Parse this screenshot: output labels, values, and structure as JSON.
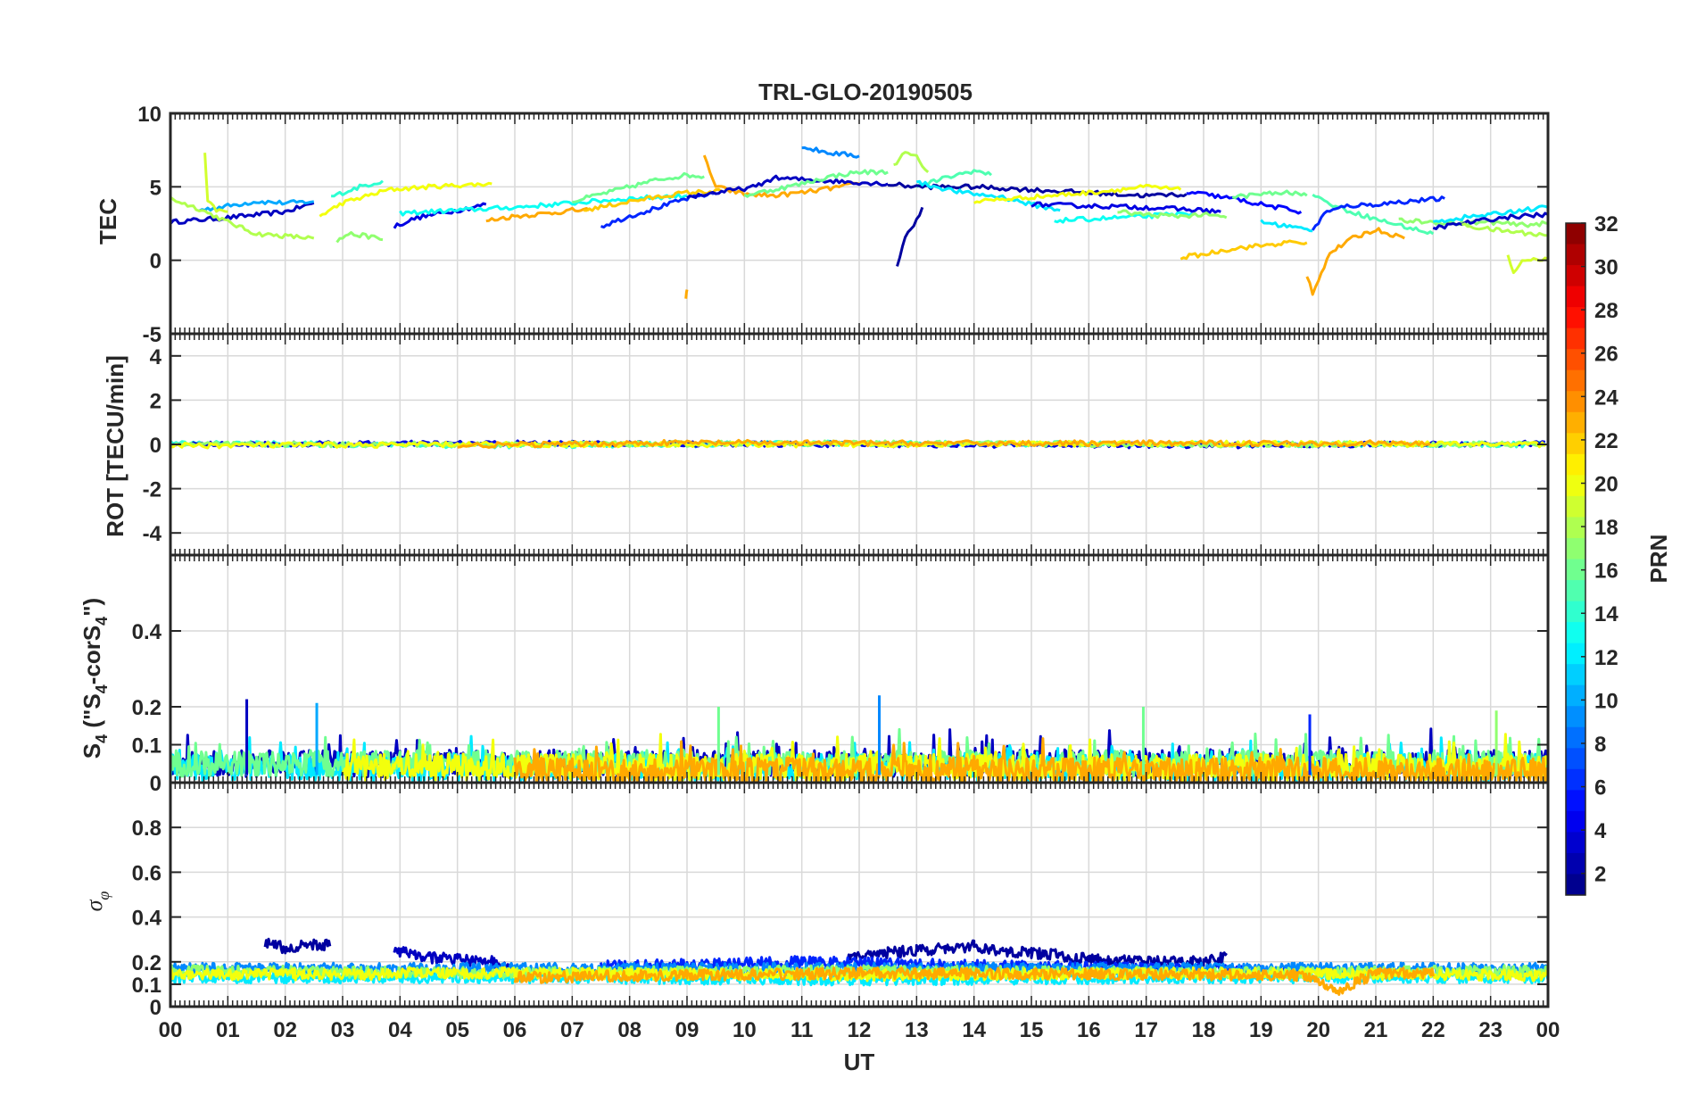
{
  "chart_data": [
    {
      "type": "line",
      "panel": "TEC",
      "title": "TRL-GLO-20190505",
      "ylabel": "TEC",
      "ylim": [
        -5,
        10
      ],
      "yticks": [
        "10",
        "5",
        "0",
        "-5"
      ],
      "ytick_values": [
        10,
        5,
        0,
        -5
      ],
      "grid": true,
      "series": [
        {
          "prn": 3,
          "x": [
            0,
            1,
            2,
            2.5
          ],
          "y": [
            2.6,
            2.9,
            3.3,
            3.9
          ]
        },
        {
          "prn": 10,
          "x": [
            0.5,
            1,
            1.5,
            2,
            2.5
          ],
          "y": [
            3.4,
            3.7,
            4.0,
            3.9,
            4.0
          ]
        },
        {
          "prn": 18,
          "x": [
            0,
            0.5,
            1,
            1.5,
            2.5
          ],
          "y": [
            4.2,
            3.5,
            2.6,
            1.8,
            1.5
          ]
        },
        {
          "prn": 19,
          "x": [
            0.6,
            0.65,
            0.8,
            1.0
          ],
          "y": [
            7.2,
            4.0,
            3.4,
            3.3
          ]
        },
        {
          "prn": 14,
          "x": [
            2.8,
            3.0,
            3.3,
            3.7
          ],
          "y": [
            4.3,
            4.6,
            5.0,
            5.4
          ]
        },
        {
          "prn": 17,
          "x": [
            2.9,
            3.1,
            3.5,
            3.7
          ],
          "y": [
            1.3,
            1.8,
            1.6,
            1.4
          ]
        },
        {
          "prn": 20,
          "x": [
            2.6,
            3,
            3.8,
            4.5,
            5,
            5.6
          ],
          "y": [
            3.0,
            3.9,
            4.8,
            5.0,
            5.1,
            5.2
          ]
        },
        {
          "prn": 4,
          "x": [
            3.9,
            4.3,
            4.7,
            5.0,
            5.5
          ],
          "y": [
            2.3,
            2.9,
            3.2,
            3.4,
            3.8
          ]
        },
        {
          "prn": 23,
          "x": [
            5.5,
            6,
            6.6,
            7,
            7.3
          ],
          "y": [
            2.7,
            3.0,
            3.2,
            3.4,
            3.4
          ]
        },
        {
          "prn": 13,
          "x": [
            4.0,
            5,
            6,
            7,
            8,
            9
          ],
          "y": [
            3.2,
            3.4,
            3.6,
            3.9,
            4.2,
            4.4
          ]
        },
        {
          "prn": 16,
          "x": [
            7.0,
            7.5,
            8,
            8.5,
            9,
            9.3
          ],
          "y": [
            4.0,
            4.5,
            5.0,
            5.5,
            5.8,
            5.7
          ]
        },
        {
          "prn": 6,
          "x": [
            7.5,
            8,
            8.5,
            9,
            9.5
          ],
          "y": [
            2.3,
            3.0,
            3.6,
            4.2,
            4.6
          ]
        },
        {
          "prn": 22,
          "x": [
            7.2,
            8,
            8.8,
            9,
            9.6
          ],
          "y": [
            3.4,
            4.0,
            4.5,
            4.6,
            4.7
          ]
        },
        {
          "prn": 23,
          "x": [
            9.3,
            9.5,
            10,
            10.5,
            11,
            11.5,
            12
          ],
          "y": [
            7.1,
            5.0,
            4.5,
            4.4,
            4.6,
            4.9,
            5.2
          ]
        },
        {
          "prn": 23,
          "x": [
            8.98,
            9.0
          ],
          "y": [
            -2.5,
            -2.0
          ]
        },
        {
          "prn": 3,
          "x": [
            9.0,
            9.5,
            10.2,
            10.5,
            11,
            11.5,
            12.5
          ],
          "y": [
            4.3,
            4.6,
            5.0,
            5.6,
            5.5,
            5.4,
            5.2
          ]
        },
        {
          "prn": 9,
          "x": [
            11.0,
            11.5,
            12.0
          ],
          "y": [
            7.7,
            7.3,
            7.1
          ]
        },
        {
          "prn": 16,
          "x": [
            10.0,
            10.5,
            11,
            11.5,
            12,
            12.5
          ],
          "y": [
            4.4,
            4.8,
            5.2,
            5.7,
            6.0,
            6.0
          ]
        },
        {
          "prn": 18,
          "x": [
            12.6,
            12.8,
            13.0,
            13.2
          ],
          "y": [
            6.5,
            7.3,
            7.0,
            6.0
          ]
        },
        {
          "prn": 2,
          "x": [
            12.66,
            12.8,
            13.0,
            13.1
          ],
          "y": [
            -0.4,
            1.5,
            2.8,
            3.6
          ]
        },
        {
          "prn": 15,
          "x": [
            13.0,
            13.5,
            14.0,
            14.3
          ],
          "y": [
            5.0,
            5.6,
            6.1,
            5.8
          ]
        },
        {
          "prn": 2,
          "x": [
            12.5,
            13,
            14,
            15,
            16,
            17,
            17.7
          ],
          "y": [
            5.2,
            5.0,
            5.0,
            4.8,
            4.6,
            4.4,
            4.5
          ]
        },
        {
          "prn": 12,
          "x": [
            13.0,
            13.8,
            14.5,
            15.0,
            15.5
          ],
          "y": [
            5.3,
            4.6,
            4.3,
            3.8,
            3.4
          ]
        },
        {
          "prn": 20,
          "x": [
            14.0,
            15,
            16,
            17,
            17.6
          ],
          "y": [
            4.0,
            4.3,
            4.6,
            5.0,
            4.8
          ]
        },
        {
          "prn": 13,
          "x": [
            15.4,
            16,
            17,
            17.8
          ],
          "y": [
            2.7,
            2.8,
            3.0,
            3.2
          ]
        },
        {
          "prn": 4,
          "x": [
            15.0,
            16,
            17,
            18,
            18.3
          ],
          "y": [
            3.8,
            3.7,
            3.6,
            3.4,
            3.3
          ]
        },
        {
          "prn": 17,
          "x": [
            16.5,
            17,
            17.5,
            18,
            18.4
          ],
          "y": [
            3.3,
            3.1,
            3.0,
            3.1,
            2.9
          ]
        },
        {
          "prn": 5,
          "x": [
            17.7,
            18,
            18.5,
            19,
            19.7
          ],
          "y": [
            4.6,
            4.5,
            4.2,
            3.8,
            3.3
          ]
        },
        {
          "prn": 16,
          "x": [
            18.5,
            19,
            19.5,
            19.8
          ],
          "y": [
            4.3,
            4.5,
            4.6,
            4.4
          ]
        },
        {
          "prn": 22,
          "x": [
            17.6,
            18,
            18.5,
            19,
            19.5,
            19.8
          ],
          "y": [
            0.2,
            0.4,
            0.8,
            1.0,
            1.2,
            1.2
          ]
        },
        {
          "prn": 12,
          "x": [
            19.0,
            19.5,
            19.9
          ],
          "y": [
            2.6,
            2.3,
            2.0
          ]
        },
        {
          "prn": 23,
          "x": [
            19.8,
            19.9,
            20.2,
            20.6,
            21,
            21.5
          ],
          "y": [
            -1.0,
            -2.2,
            0.5,
            1.5,
            2.1,
            1.5
          ]
        },
        {
          "prn": 15,
          "x": [
            19.9,
            20.1,
            20.5,
            21,
            21.5,
            22
          ],
          "y": [
            4.6,
            4.0,
            3.4,
            2.8,
            2.3,
            1.8
          ]
        },
        {
          "prn": 6,
          "x": [
            19.9,
            20.1,
            20.5,
            21,
            21.5,
            22.2
          ],
          "y": [
            2.0,
            3.2,
            3.7,
            3.8,
            4.0,
            4.2
          ]
        },
        {
          "prn": 17,
          "x": [
            21.4,
            22,
            22.5,
            23,
            23.5,
            24
          ],
          "y": [
            2.7,
            2.6,
            2.5,
            2.6,
            2.4,
            2.5
          ]
        },
        {
          "prn": 12,
          "x": [
            22.0,
            22.5,
            23,
            23.5,
            24
          ],
          "y": [
            2.6,
            2.9,
            3.1,
            3.4,
            3.6
          ]
        },
        {
          "prn": 3,
          "x": [
            22.0,
            22.5,
            23,
            23.5,
            24
          ],
          "y": [
            2.2,
            2.5,
            2.8,
            3.0,
            3.1
          ]
        },
        {
          "prn": 18,
          "x": [
            22.5,
            23,
            23.5,
            24
          ],
          "y": [
            2.4,
            2.1,
            1.9,
            1.7
          ]
        },
        {
          "prn": 19,
          "x": [
            23.3,
            23.4,
            23.6,
            24
          ],
          "y": [
            0.3,
            -0.8,
            0.1,
            0.1
          ]
        }
      ]
    },
    {
      "type": "line",
      "panel": "ROT",
      "ylabel": "ROT [TECU/min]",
      "ylim": [
        -5,
        5
      ],
      "yticks": [
        "4",
        "2",
        "0",
        "-2",
        "-4"
      ],
      "ytick_values": [
        4,
        2,
        0,
        -2,
        -4
      ],
      "grid": true,
      "series": [
        {
          "prn": 14,
          "x": [
            0,
            6,
            12,
            18,
            24
          ],
          "y": [
            0.05,
            -0.05,
            0.05,
            0,
            0
          ]
        },
        {
          "prn": 4,
          "x": [
            0,
            6,
            12,
            18,
            24
          ],
          "y": [
            0,
            0.05,
            0,
            -0.05,
            0.05
          ]
        },
        {
          "prn": 17,
          "x": [
            0,
            6,
            12,
            18,
            24
          ],
          "y": [
            0,
            0,
            0.05,
            0,
            0
          ]
        },
        {
          "prn": 20,
          "x": [
            0,
            6,
            12,
            18,
            24
          ],
          "y": [
            -0.05,
            0,
            0,
            0.05,
            0
          ]
        },
        {
          "prn": 23,
          "x": [
            5,
            9,
            12,
            18,
            22
          ],
          "y": [
            -0.05,
            0.08,
            0.05,
            0.05,
            0.05
          ]
        }
      ]
    },
    {
      "type": "line",
      "panel": "S4",
      "ylabel": "S4 (\"S4-corS4\")",
      "ylim": [
        0,
        0.6
      ],
      "yticks": [
        "0.4",
        "0.2",
        "0.1",
        "0"
      ],
      "ytick_values": [
        0.4,
        0.2,
        0.1,
        0
      ],
      "grid": true,
      "spikes": [
        {
          "prn": 3,
          "x": 1.33,
          "y": 0.22
        },
        {
          "prn": 10,
          "x": 2.55,
          "y": 0.21
        },
        {
          "prn": 9,
          "x": 12.35,
          "y": 0.23
        },
        {
          "prn": 16,
          "x": 9.55,
          "y": 0.2
        },
        {
          "prn": 16,
          "x": 16.95,
          "y": 0.2
        },
        {
          "prn": 6,
          "x": 19.85,
          "y": 0.18
        },
        {
          "prn": 17,
          "x": 23.1,
          "y": 0.19
        }
      ],
      "series": [
        {
          "prn": 3,
          "x": [
            0,
            24
          ],
          "y": [
            0.05,
            0.05
          ]
        },
        {
          "prn": 12,
          "x": [
            0,
            24
          ],
          "y": [
            0.04,
            0.04
          ]
        },
        {
          "prn": 16,
          "x": [
            0,
            24
          ],
          "y": [
            0.05,
            0.05
          ]
        },
        {
          "prn": 20,
          "x": [
            3,
            24
          ],
          "y": [
            0.04,
            0.04
          ]
        },
        {
          "prn": 23,
          "x": [
            6,
            24
          ],
          "y": [
            0.03,
            0.03
          ]
        }
      ]
    },
    {
      "type": "line",
      "panel": "sigma_phi",
      "ylabel": "σφ",
      "ylim": [
        0,
        1
      ],
      "yticks": [
        "0.8",
        "0.6",
        "0.4",
        "0.2",
        "0.1",
        "0"
      ],
      "ytick_values": [
        0.8,
        0.6,
        0.4,
        0.2,
        0.1,
        0
      ],
      "xlabel": "UT",
      "xticks": [
        "00",
        "01",
        "02",
        "03",
        "04",
        "05",
        "06",
        "07",
        "08",
        "09",
        "10",
        "11",
        "12",
        "13",
        "14",
        "15",
        "16",
        "17",
        "18",
        "19",
        "20",
        "21",
        "22",
        "23",
        "00"
      ],
      "grid": true,
      "series": [
        {
          "prn": 2,
          "x": [
            1.65,
            2.0,
            2.5,
            2.8
          ],
          "y": [
            0.29,
            0.26,
            0.28,
            0.27
          ]
        },
        {
          "prn": 3,
          "x": [
            3.9,
            4.5,
            5.0,
            5.6,
            6.0
          ],
          "y": [
            0.25,
            0.22,
            0.21,
            0.2,
            0.16
          ]
        },
        {
          "prn": 2,
          "x": [
            11.8,
            12.5,
            13,
            13.5,
            14,
            14.5,
            15,
            15.5,
            16,
            17,
            18,
            18.4
          ],
          "y": [
            0.22,
            0.24,
            0.25,
            0.26,
            0.27,
            0.25,
            0.24,
            0.23,
            0.21,
            0.2,
            0.2,
            0.22
          ]
        },
        {
          "prn": 6,
          "x": [
            7.5,
            9,
            11,
            13,
            15,
            17,
            19,
            19.8
          ],
          "y": [
            0.18,
            0.19,
            0.2,
            0.19,
            0.18,
            0.17,
            0.16,
            0.15
          ]
        },
        {
          "prn": 9,
          "x": [
            0,
            6,
            12,
            18,
            24
          ],
          "y": [
            0.17,
            0.17,
            0.17,
            0.17,
            0.17
          ]
        },
        {
          "prn": 12,
          "x": [
            0,
            6,
            12,
            18,
            24
          ],
          "y": [
            0.13,
            0.13,
            0.12,
            0.13,
            0.13
          ]
        },
        {
          "prn": 17,
          "x": [
            0,
            6,
            12,
            18,
            24
          ],
          "y": [
            0.16,
            0.15,
            0.16,
            0.15,
            0.16
          ]
        },
        {
          "prn": 20,
          "x": [
            0,
            6,
            12,
            18,
            24
          ],
          "y": [
            0.14,
            0.15,
            0.14,
            0.15,
            0.14
          ]
        },
        {
          "prn": 23,
          "x": [
            6,
            9,
            12,
            19.8,
            20.3,
            21,
            22
          ],
          "y": [
            0.13,
            0.14,
            0.15,
            0.14,
            0.07,
            0.15,
            0.15
          ]
        }
      ]
    }
  ],
  "colorbar": {
    "label": "PRN",
    "range": [
      1,
      32
    ],
    "ticks": [
      "32",
      "30",
      "28",
      "26",
      "24",
      "22",
      "20",
      "18",
      "16",
      "14",
      "12",
      "10",
      "8",
      "6",
      "4",
      "2"
    ],
    "tick_values": [
      32,
      30,
      28,
      26,
      24,
      22,
      20,
      18,
      16,
      14,
      12,
      10,
      8,
      6,
      4,
      2
    ],
    "colormap": "jet"
  }
}
